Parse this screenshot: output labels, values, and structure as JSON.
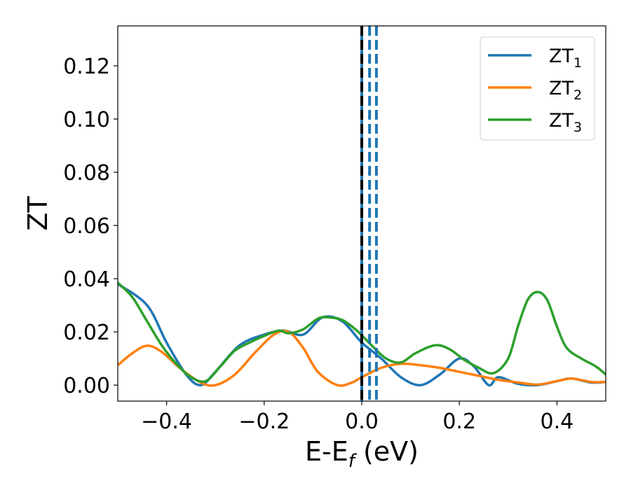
{
  "chart_data": {
    "type": "line",
    "xlabel_main": "E-E",
    "xlabel_sub": "f",
    "xlabel_unit": " (eV)",
    "ylabel": "ZT",
    "xlim": [
      -0.5,
      0.5
    ],
    "ylim": [
      -0.006,
      0.135
    ],
    "xticks": [
      -0.4,
      -0.2,
      0.0,
      0.2,
      0.4
    ],
    "xtick_labels": [
      "−0.4",
      "−0.2",
      "0.0",
      "0.2",
      "0.4"
    ],
    "yticks": [
      0.0,
      0.02,
      0.04,
      0.06,
      0.08,
      0.1,
      0.12
    ],
    "ytick_labels": [
      "0.00",
      "0.02",
      "0.04",
      "0.06",
      "0.08",
      "0.10",
      "0.12"
    ],
    "grid": false,
    "legend_position": "top-right",
    "series": [
      {
        "name": "ZT",
        "sub": "1",
        "color": "#1f77b4",
        "x": [
          -0.5,
          -0.44,
          -0.4,
          -0.36,
          -0.33,
          -0.3,
          -0.25,
          -0.2,
          -0.16,
          -0.12,
          -0.08,
          -0.04,
          0.0,
          0.04,
          0.08,
          0.12,
          0.16,
          0.2,
          0.23,
          0.26,
          0.28,
          0.32,
          0.36,
          0.4,
          0.43,
          0.47,
          0.5
        ],
        "y": [
          0.038,
          0.03,
          0.016,
          0.004,
          0.0,
          0.005,
          0.015,
          0.019,
          0.0205,
          0.019,
          0.0255,
          0.024,
          0.016,
          0.01,
          0.003,
          0.0,
          0.004,
          0.01,
          0.007,
          0.0,
          0.003,
          0.0005,
          0.0,
          0.0015,
          0.0025,
          0.001,
          0.0012
        ]
      },
      {
        "name": "ZT",
        "sub": "2",
        "color": "#ff7f0e",
        "x": [
          -0.5,
          -0.47,
          -0.44,
          -0.41,
          -0.37,
          -0.33,
          -0.3,
          -0.26,
          -0.22,
          -0.18,
          -0.15,
          -0.12,
          -0.09,
          -0.05,
          -0.02,
          0.0,
          0.04,
          0.08,
          0.12,
          0.16,
          0.2,
          0.24,
          0.28,
          0.32,
          0.36,
          0.4,
          0.43,
          0.47,
          0.5
        ],
        "y": [
          0.0075,
          0.012,
          0.0148,
          0.0125,
          0.006,
          0.001,
          0.0,
          0.004,
          0.012,
          0.019,
          0.02,
          0.014,
          0.005,
          0.0,
          0.001,
          0.003,
          0.0065,
          0.008,
          0.0075,
          0.0065,
          0.005,
          0.0035,
          0.002,
          0.001,
          0.0002,
          0.0015,
          0.0025,
          0.0012,
          0.0012
        ]
      },
      {
        "name": "ZT",
        "sub": "3",
        "color": "#2ca02c",
        "x": [
          -0.5,
          -0.47,
          -0.44,
          -0.41,
          -0.38,
          -0.35,
          -0.32,
          -0.29,
          -0.26,
          -0.23,
          -0.2,
          -0.17,
          -0.15,
          -0.12,
          -0.09,
          -0.07,
          -0.04,
          -0.01,
          0.02,
          0.05,
          0.08,
          0.11,
          0.15,
          0.18,
          0.21,
          0.24,
          0.27,
          0.3,
          0.32,
          0.34,
          0.36,
          0.38,
          0.4,
          0.42,
          0.45,
          0.48,
          0.5
        ],
        "y": [
          0.0385,
          0.033,
          0.024,
          0.015,
          0.008,
          0.003,
          0.0015,
          0.007,
          0.013,
          0.016,
          0.0185,
          0.0205,
          0.0195,
          0.021,
          0.025,
          0.0255,
          0.0245,
          0.0205,
          0.015,
          0.01,
          0.0085,
          0.012,
          0.015,
          0.0135,
          0.0095,
          0.0065,
          0.0045,
          0.01,
          0.022,
          0.032,
          0.035,
          0.032,
          0.022,
          0.014,
          0.01,
          0.007,
          0.004
        ]
      }
    ],
    "vlines": [
      {
        "x": 0.0,
        "style": "solid",
        "color": "#1f77b4"
      },
      {
        "x": 0.0,
        "style": "dashed",
        "color": "#000000"
      },
      {
        "x": 0.016,
        "style": "dashed",
        "color": "#1f77b4"
      },
      {
        "x": 0.03,
        "style": "dashed",
        "color": "#1f77b4"
      }
    ]
  }
}
